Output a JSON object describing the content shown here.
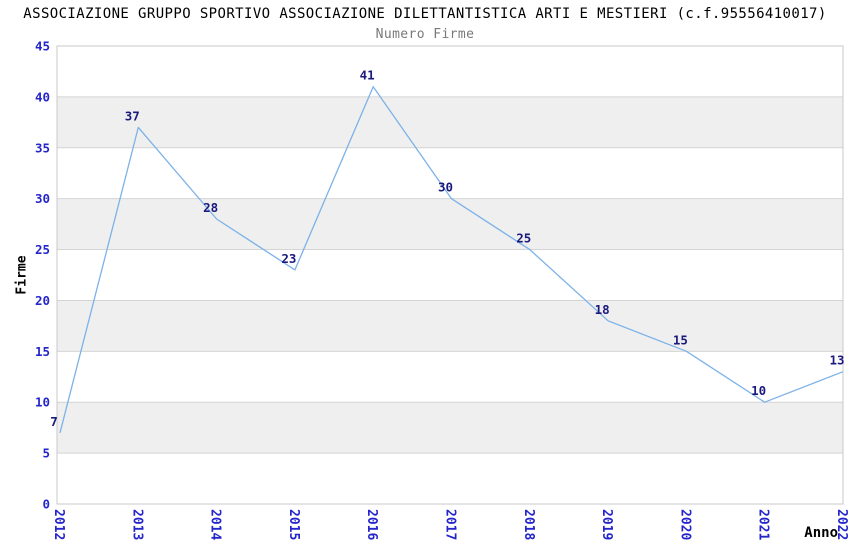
{
  "chart_data": {
    "type": "line",
    "title": "ASSOCIAZIONE GRUPPO SPORTIVO ASSOCIAZIONE DILETTANTISTICA ARTI E MESTIERI (c.f.95556410017)",
    "subtitle": "Numero Firme",
    "xlabel": "Anno",
    "ylabel": "Firme",
    "categories": [
      "2012",
      "2013",
      "2014",
      "2015",
      "2016",
      "2017",
      "2018",
      "2019",
      "2020",
      "2021",
      "2022"
    ],
    "values": [
      7,
      37,
      28,
      23,
      41,
      30,
      25,
      18,
      15,
      10,
      13
    ],
    "ylim": [
      0,
      45
    ],
    "ytick_step": 5,
    "yticks": [
      0,
      5,
      10,
      15,
      20,
      25,
      30,
      35,
      40,
      45
    ],
    "grid": "horizontal-bands",
    "legend": "none",
    "point_labels_visible": true,
    "colors": {
      "line": "#7cb2e8",
      "tick_label": "#2525cc",
      "point_label": "#1a1a7e",
      "band_fill": "#efefef",
      "gridline": "#d4d4d4",
      "plot_border": "#c8c8c8",
      "title": "#000000",
      "subtitle": "#797979",
      "axis_title": "#000000",
      "background": "#ffffff"
    }
  }
}
